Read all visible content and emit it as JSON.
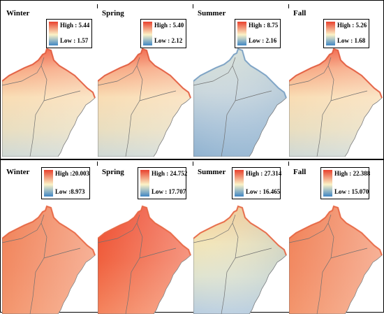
{
  "figure": {
    "rows": [
      {
        "panels": [
          {
            "season": "Winter",
            "high": "High : 5.44",
            "low": "Low : 1.57",
            "palette": "warm-light",
            "level": 0.55
          },
          {
            "season": "Spring",
            "high": "High : 5.40",
            "low": "Low : 2.12",
            "palette": "warm-light",
            "level": 0.55
          },
          {
            "season": "Summer",
            "high": "High : 8.75",
            "low": "Low : 2.16",
            "palette": "cool",
            "level": 0.35
          },
          {
            "season": "Fall",
            "high": "High : 5.26",
            "low": "Low : 1.68",
            "palette": "warm-light",
            "level": 0.5
          }
        ]
      },
      {
        "panels": [
          {
            "season": "Winter",
            "high": "High :20.003",
            "low": "Low :8.973",
            "palette": "orange",
            "level": 0.75
          },
          {
            "season": "Spring",
            "high": "High : 24.752",
            "low": "Low : 17.707",
            "palette": "red",
            "level": 0.9
          },
          {
            "season": "Summer",
            "high": "High : 27.314",
            "low": "Low : 16.465",
            "palette": "mixed",
            "level": 0.45
          },
          {
            "season": "Fall",
            "high": "High : 22.388",
            "low": "Low : 15.070",
            "palette": "orange",
            "level": 0.75
          }
        ]
      }
    ],
    "legend_colors": {
      "high": "#e8412e",
      "mid": "#fbf3c8",
      "low": "#3f86c4"
    },
    "outline_color": "#6e6e6e"
  }
}
